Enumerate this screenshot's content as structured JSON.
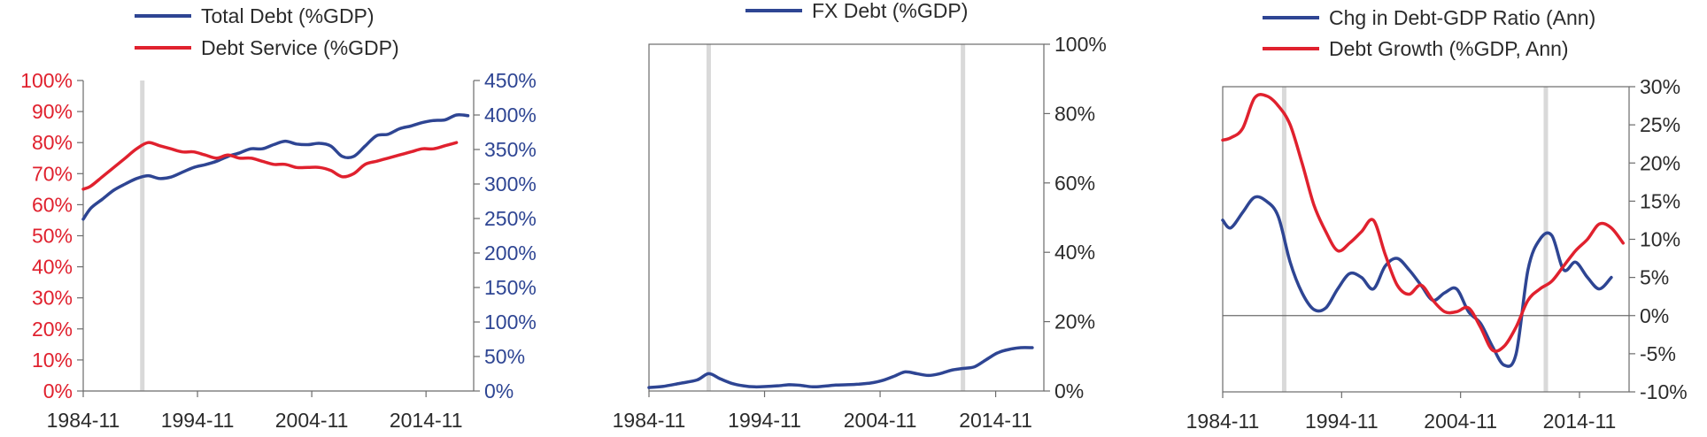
{
  "colors": {
    "blue": "#2E4593",
    "red": "#E0212E",
    "axis": "#6b6b6b",
    "text": "#2b2b2b",
    "recession": "#d9d9d9"
  },
  "chart_data": [
    {
      "type": "line",
      "legend_position": "top",
      "grid": false,
      "xlim": [
        1984.83,
        2019.0
      ],
      "x_ticks": [
        1984.83,
        1994.83,
        2004.83,
        2014.83
      ],
      "x_tick_labels": [
        "1984-11",
        "1994-11",
        "2004-11",
        "2014-11"
      ],
      "recession_bands": [
        1990.0
      ],
      "left_axis": {
        "ylim": [
          0,
          100
        ],
        "ticks": [
          0,
          10,
          20,
          30,
          40,
          50,
          60,
          70,
          80,
          90,
          100
        ],
        "tick_labels": [
          "0%",
          "10%",
          "20%",
          "30%",
          "40%",
          "50%",
          "60%",
          "70%",
          "80%",
          "90%",
          "100%"
        ],
        "color": "red"
      },
      "right_axis": {
        "ylim": [
          0,
          450
        ],
        "ticks": [
          0,
          50,
          100,
          150,
          200,
          250,
          300,
          350,
          400,
          450
        ],
        "tick_labels": [
          "0%",
          "50%",
          "100%",
          "150%",
          "200%",
          "250%",
          "300%",
          "350%",
          "400%",
          "450%"
        ],
        "color": "blue"
      },
      "series": [
        {
          "name": "Total Debt (%GDP)",
          "color": "blue",
          "axis": "right",
          "x": [
            1984.83,
            1985.5,
            1986.5,
            1987.5,
            1988.5,
            1989.5,
            1990.5,
            1991.5,
            1992.5,
            1993.5,
            1994.5,
            1995.5,
            1996.5,
            1997.5,
            1998.5,
            1999.5,
            2000.5,
            2001.5,
            2002.5,
            2003.5,
            2004.5,
            2005.5,
            2006.5,
            2007.5,
            2008.5,
            2009.5,
            2010.5,
            2011.5,
            2012.5,
            2013.5,
            2014.5,
            2015.5,
            2016.5,
            2017.5,
            2018.5
          ],
          "values": [
            249,
            265,
            278,
            291,
            300,
            308,
            312,
            308,
            310,
            317,
            324,
            328,
            333,
            340,
            345,
            351,
            351,
            357,
            362,
            358,
            357,
            359,
            355,
            340,
            340,
            355,
            370,
            372,
            380,
            384,
            389,
            392,
            393,
            400,
            399
          ]
        },
        {
          "name": "Debt Service (%GDP)",
          "color": "red",
          "axis": "left",
          "x": [
            1984.83,
            1985.5,
            1986.5,
            1987.5,
            1988.5,
            1989.5,
            1990.5,
            1991.5,
            1992.5,
            1993.5,
            1994.5,
            1995.5,
            1996.5,
            1997.5,
            1998.5,
            1999.5,
            2000.5,
            2001.5,
            2002.5,
            2003.5,
            2004.5,
            2005.5,
            2006.5,
            2007.5,
            2008.5,
            2009.5,
            2010.5,
            2011.5,
            2012.5,
            2013.5,
            2014.5,
            2015.5,
            2016.5,
            2017.5
          ],
          "values": [
            65,
            66,
            69,
            72,
            75,
            78,
            80,
            79,
            78,
            77,
            77,
            76,
            75,
            76,
            75,
            75,
            74,
            73,
            73,
            72,
            72,
            72,
            71,
            69,
            70,
            73,
            74,
            75,
            76,
            77,
            78,
            78,
            79,
            80
          ]
        }
      ]
    },
    {
      "type": "line",
      "legend_position": "top",
      "grid": false,
      "xlim": [
        1984.83,
        2019.0
      ],
      "x_ticks": [
        1984.83,
        1994.83,
        2004.83,
        2014.83
      ],
      "x_tick_labels": [
        "1984-11",
        "1994-11",
        "2004-11",
        "2014-11"
      ],
      "recession_bands": [
        1990.0,
        2012.0
      ],
      "right_axis": {
        "ylim": [
          0,
          100
        ],
        "ticks": [
          0,
          20,
          40,
          60,
          80,
          100
        ],
        "tick_labels": [
          "0%",
          "20%",
          "40%",
          "60%",
          "80%",
          "100%"
        ],
        "color": "text"
      },
      "series": [
        {
          "name": "FX Debt (%GDP)",
          "color": "blue",
          "axis": "right",
          "x": [
            1984.83,
            1986,
            1987.5,
            1989,
            1990,
            1991,
            1992,
            1993,
            1994,
            1995,
            1996,
            1997,
            1998,
            1999,
            2000,
            2001,
            2002,
            2003,
            2004,
            2005,
            2006,
            2007,
            2008,
            2009,
            2010,
            2011,
            2012,
            2013,
            2014,
            2015,
            2016,
            2017,
            2018
          ],
          "values": [
            1.0,
            1.3,
            2.2,
            3.2,
            5.0,
            3.5,
            2.2,
            1.5,
            1.2,
            1.3,
            1.5,
            1.8,
            1.6,
            1.2,
            1.4,
            1.7,
            1.8,
            2.0,
            2.3,
            3.0,
            4.2,
            5.5,
            5.0,
            4.5,
            5.0,
            6.0,
            6.5,
            7.0,
            9.0,
            11.0,
            12.0,
            12.5,
            12.5
          ]
        }
      ]
    },
    {
      "type": "line",
      "legend_position": "top",
      "grid": false,
      "xlim": [
        1984.83,
        2019.0
      ],
      "x_ticks": [
        1984.83,
        1994.83,
        2004.83,
        2014.83
      ],
      "x_tick_labels": [
        "1984-11",
        "1994-11",
        "2004-11",
        "2014-11"
      ],
      "recession_bands": [
        1990.0,
        2012.0
      ],
      "right_axis": {
        "ylim": [
          -10,
          30
        ],
        "ticks": [
          -10,
          -5,
          0,
          5,
          10,
          15,
          20,
          25,
          30
        ],
        "tick_labels": [
          "-10%",
          "-5%",
          "0%",
          "5%",
          "10%",
          "15%",
          "20%",
          "25%",
          "30%"
        ],
        "color": "text"
      },
      "series": [
        {
          "name": "Chg in Debt-GDP Ratio (Ann)",
          "color": "blue",
          "axis": "right",
          "x": [
            1984.83,
            1985.5,
            1986.5,
            1987.5,
            1988.5,
            1989.5,
            1990.5,
            1991.5,
            1992.5,
            1993.5,
            1994.5,
            1995.5,
            1996.5,
            1997.5,
            1998.5,
            1999.5,
            2000.5,
            2001.5,
            2002.5,
            2003.5,
            2004.5,
            2005.5,
            2006.5,
            2007.5,
            2008.5,
            2009.5,
            2010.5,
            2011.5,
            2012.5,
            2013.5,
            2014.5,
            2015.5,
            2016.5,
            2017.5
          ],
          "values": [
            12.5,
            11.5,
            13.5,
            15.5,
            15.0,
            13.0,
            7.0,
            3.0,
            0.8,
            1.0,
            3.5,
            5.5,
            5.0,
            3.5,
            6.5,
            7.5,
            6.0,
            4.0,
            2.0,
            3.0,
            3.5,
            0.5,
            -1.0,
            -4.0,
            -6.5,
            -5.0,
            6.0,
            10.0,
            10.5,
            6.0,
            7.0,
            5.0,
            3.5,
            5.0
          ]
        },
        {
          "name": "Debt Growth (%GDP, Ann)",
          "color": "red",
          "axis": "right",
          "x": [
            1984.83,
            1985.5,
            1986.5,
            1987.5,
            1988.5,
            1989.5,
            1990.5,
            1991.5,
            1992.5,
            1993.5,
            1994.5,
            1995.5,
            1996.5,
            1997.5,
            1998.5,
            1999.5,
            2000.5,
            2001.5,
            2002.5,
            2003.5,
            2004.5,
            2005.5,
            2006.5,
            2007.5,
            2008.5,
            2009.5,
            2010.5,
            2011.5,
            2012.5,
            2013.5,
            2014.5,
            2015.5,
            2016.5,
            2017.5,
            2018.5
          ],
          "values": [
            23.0,
            23.3,
            24.5,
            28.5,
            28.8,
            27.5,
            25.0,
            20.0,
            14.5,
            11.0,
            8.5,
            9.5,
            11.0,
            12.5,
            8.0,
            4.0,
            2.8,
            4.0,
            2.0,
            0.5,
            0.5,
            1.0,
            -1.5,
            -4.5,
            -4.0,
            -1.5,
            2.0,
            3.5,
            4.5,
            6.5,
            8.5,
            10.0,
            12.0,
            11.5,
            9.5
          ]
        }
      ]
    }
  ]
}
